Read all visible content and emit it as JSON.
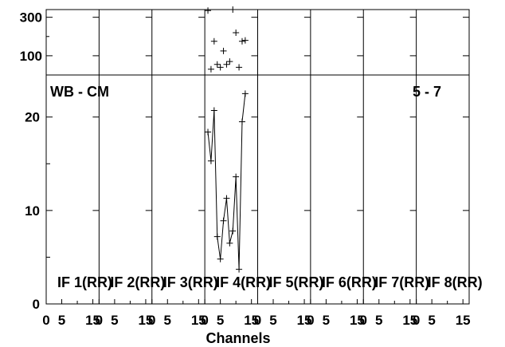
{
  "chart_data": {
    "type": "scatter",
    "xlabel": "Channels",
    "panel_label_left": "WB - CM",
    "panel_label_right": "5 - 7",
    "panel_x_ticks": [
      "0",
      "5",
      "15"
    ],
    "panels": [
      {
        "label": "IF 1(RR)"
      },
      {
        "label": "IF 2(RR)"
      },
      {
        "label": "IF 3(RR)"
      },
      {
        "label": "IF 4(RR)"
      },
      {
        "label": "IF 5(RR)"
      },
      {
        "label": "IF 6(RR)"
      },
      {
        "label": "IF 7(RR)"
      },
      {
        "label": "IF 8(RR)"
      }
    ],
    "top_axis": {
      "ylim": [
        0,
        340
      ],
      "ticks": [
        100,
        300
      ]
    },
    "bottom_axis": {
      "ylim": [
        0,
        24.5
      ],
      "ticks": [
        0,
        10,
        20
      ]
    },
    "series": [
      {
        "panel": 4,
        "x": [
          1,
          2,
          3,
          4,
          5,
          6,
          7,
          8,
          9,
          10,
          11,
          12,
          13
        ],
        "top_y": [
          335,
          30,
          175,
          55,
          40,
          125,
          55,
          70,
          340,
          220,
          40,
          175,
          180
        ],
        "bottom_y": [
          18.4,
          15.3,
          20.7,
          7.2,
          4.8,
          8.9,
          11.3,
          6.5,
          7.8,
          13.6,
          3.7,
          19.5,
          22.5
        ]
      }
    ]
  }
}
